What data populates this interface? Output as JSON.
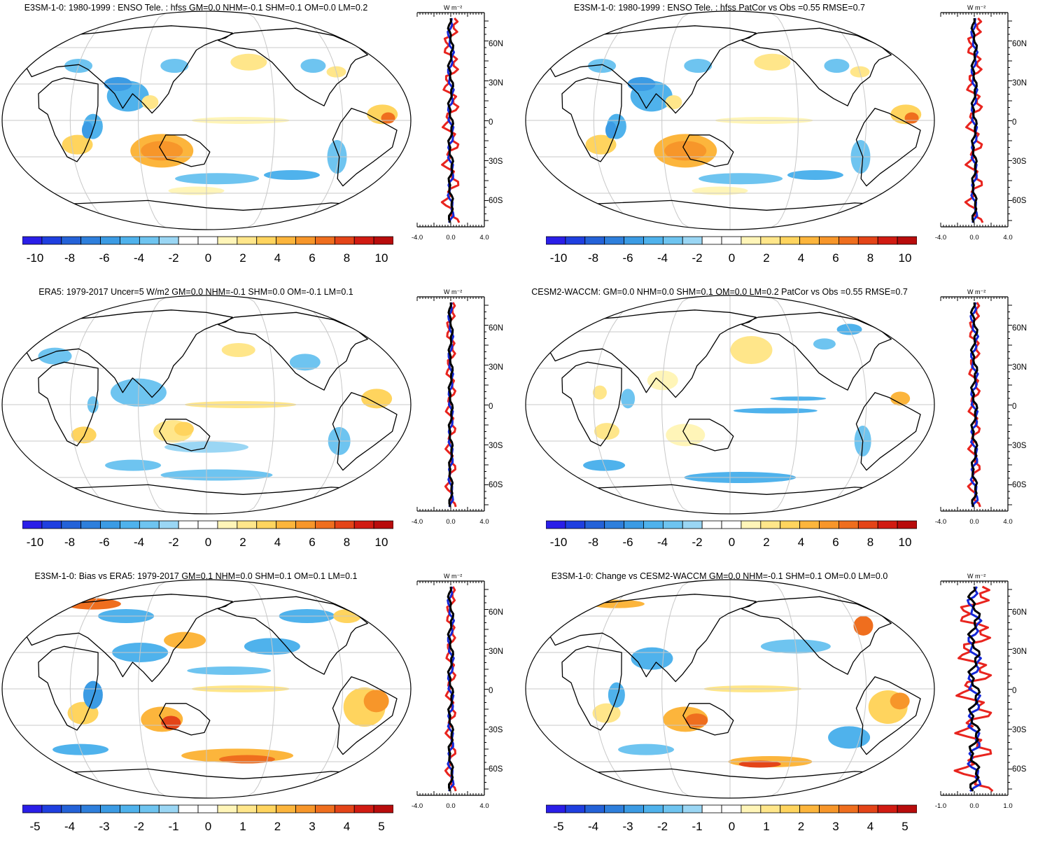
{
  "colors": {
    "negative": [
      "#2a1ee8",
      "#1f3fe0",
      "#2462d8",
      "#2e7fdc",
      "#3b9be4",
      "#4fb2ec",
      "#6ec4f0",
      "#9ad6f4"
    ],
    "positive": [
      "#fff5b8",
      "#ffe68a",
      "#ffd45e",
      "#fcb53c",
      "#f7962a",
      "#ef6e1e",
      "#e44418",
      "#d11b12",
      "#b80c0c"
    ],
    "model_line": "#e8241e",
    "obs_line": "#1428d8",
    "diff_line": "#000000",
    "grid": "#c8c8c8"
  },
  "panels": [
    {
      "title": "E3SM-1-0: 1980-1999 : ENSO Tele. : hfss GM=0.0 NHM=-0.1 SHM=0.1 OM=0.0 LM=0.2",
      "colorbar_labels": [
        "-10",
        "-8",
        "-6",
        "-4",
        "-2",
        "0",
        "2",
        "4",
        "6",
        "8",
        "10"
      ],
      "profile_units": "W m⁻²",
      "profile_xticks": [
        "-4.0",
        "0.0",
        "4.0"
      ],
      "profile_lat_labels": [
        "60N",
        "30N",
        "0",
        "30S",
        "60S"
      ],
      "pattern": "model"
    },
    {
      "title": "E3SM-1-0: 1980-1999 : ENSO Tele. : hfss PatCor vs Obs =0.55 RMSE=0.7",
      "colorbar_labels": [
        "-10",
        "-8",
        "-6",
        "-4",
        "-2",
        "0",
        "2",
        "4",
        "6",
        "8",
        "10"
      ],
      "profile_units": "W m⁻²",
      "profile_xticks": [
        "-4.0",
        "0.0",
        "4.0"
      ],
      "profile_lat_labels": [
        "60N",
        "30N",
        "0",
        "30S",
        "60S"
      ],
      "pattern": "model"
    },
    {
      "title": "ERA5: 1979-2017 Uncer=5 W/m2 GM=0.0 NHM=-0.1 SHM=0.0 OM=-0.1 LM=0.1",
      "colorbar_labels": [
        "-10",
        "-8",
        "-6",
        "-4",
        "-2",
        "0",
        "2",
        "4",
        "6",
        "8",
        "10"
      ],
      "profile_units": "W m⁻²",
      "profile_xticks": [
        "-4.0",
        "0.0",
        "4.0"
      ],
      "profile_lat_labels": [
        "60N",
        "30N",
        "0",
        "30S",
        "60S"
      ],
      "pattern": "obs"
    },
    {
      "title": "CESM2-WACCM: GM=0.0 NHM=0.0 SHM=0.1 OM=0.0 LM=0.2 PatCor vs Obs =0.55 RMSE=0.7",
      "colorbar_labels": [
        "-10",
        "-8",
        "-6",
        "-4",
        "-2",
        "0",
        "2",
        "4",
        "6",
        "8",
        "10"
      ],
      "profile_units": "W m⁻²",
      "profile_xticks": [
        "-4.0",
        "0.0",
        "4.0"
      ],
      "profile_lat_labels": [
        "60N",
        "30N",
        "0",
        "30S",
        "60S"
      ],
      "pattern": "cesm"
    },
    {
      "title": "E3SM-1-0: Bias vs ERA5: 1979-2017 GM=0.1 NHM=0.0 SHM=0.1 OM=0.1 LM=0.1",
      "colorbar_labels": [
        "-5",
        "-4",
        "-3",
        "-2",
        "-1",
        "0",
        "1",
        "2",
        "3",
        "4",
        "5"
      ],
      "profile_units": "W m⁻²",
      "profile_xticks": [
        "-4.0",
        "0.0",
        "4.0"
      ],
      "profile_lat_labels": [
        "60N",
        "30N",
        "0",
        "30S",
        "60S"
      ],
      "pattern": "bias"
    },
    {
      "title": "E3SM-1-0: Change vs CESM2-WACCM GM=0.0 NHM=-0.1 SHM=0.1 OM=0.0 LM=0.0",
      "colorbar_labels": [
        "-5",
        "-4",
        "-3",
        "-2",
        "-1",
        "0",
        "1",
        "2",
        "3",
        "4",
        "5"
      ],
      "profile_units": "W m⁻²",
      "profile_xticks": [
        "-1.0",
        "0.0",
        "1.0"
      ],
      "profile_lat_labels": [
        "60N",
        "30N",
        "0",
        "30S",
        "60S"
      ],
      "pattern": "change"
    }
  ]
}
